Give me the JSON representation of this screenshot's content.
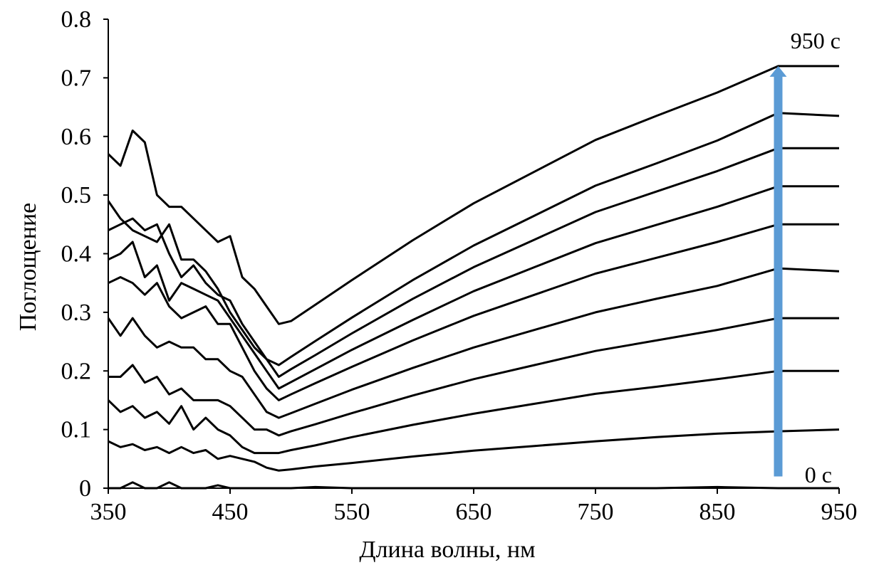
{
  "chart_data": {
    "type": "line",
    "title": "",
    "xlabel": "Длина волны, нм",
    "ylabel": "Поглощение",
    "xlim": [
      350,
      950
    ],
    "ylim": [
      0,
      0.8
    ],
    "xticks": [
      "350",
      "450",
      "550",
      "650",
      "750",
      "850",
      "950"
    ],
    "yticks": [
      "0",
      "0.1",
      "0.2",
      "0.3",
      "0.4",
      "0.5",
      "0.6",
      "0.7",
      "0.8"
    ],
    "grid": false,
    "x": [
      350,
      360,
      370,
      380,
      390,
      400,
      410,
      420,
      430,
      440,
      450,
      460,
      470,
      480,
      490,
      500,
      520,
      550,
      600,
      650,
      700,
      750,
      800,
      850,
      900,
      950
    ],
    "series": [
      {
        "name": "0 c",
        "values": [
          0,
          0,
          0.01,
          0,
          0,
          0.01,
          0,
          0,
          0,
          0.005,
          0,
          0,
          0,
          0,
          0,
          0,
          0.002,
          0,
          0,
          0,
          0,
          0,
          0,
          0.002,
          0,
          0
        ]
      },
      {
        "name": "",
        "values": [
          0.08,
          0.07,
          0.075,
          0.065,
          0.07,
          0.06,
          0.07,
          0.06,
          0.065,
          0.05,
          0.055,
          0.05,
          0.045,
          0.035,
          0.03,
          0.032,
          0.037,
          0.043,
          0.054,
          0.064,
          0.072,
          0.08,
          0.087,
          0.093,
          0.097,
          0.1
        ]
      },
      {
        "name": "",
        "values": [
          0.15,
          0.13,
          0.14,
          0.12,
          0.13,
          0.11,
          0.14,
          0.1,
          0.12,
          0.1,
          0.09,
          0.07,
          0.06,
          0.06,
          0.06,
          0.065,
          0.073,
          0.087,
          0.108,
          0.127,
          0.144,
          0.161,
          0.173,
          0.186,
          0.2,
          0.2
        ]
      },
      {
        "name": "",
        "values": [
          0.19,
          0.19,
          0.21,
          0.18,
          0.19,
          0.16,
          0.17,
          0.15,
          0.15,
          0.15,
          0.14,
          0.12,
          0.1,
          0.1,
          0.09,
          0.097,
          0.109,
          0.128,
          0.158,
          0.186,
          0.21,
          0.234,
          0.252,
          0.27,
          0.29,
          0.29
        ]
      },
      {
        "name": "",
        "values": [
          0.29,
          0.26,
          0.29,
          0.26,
          0.24,
          0.25,
          0.24,
          0.24,
          0.22,
          0.22,
          0.2,
          0.19,
          0.16,
          0.13,
          0.12,
          0.128,
          0.144,
          0.168,
          0.205,
          0.24,
          0.27,
          0.3,
          0.323,
          0.345,
          0.375,
          0.37
        ]
      },
      {
        "name": "",
        "values": [
          0.35,
          0.36,
          0.35,
          0.33,
          0.35,
          0.31,
          0.29,
          0.3,
          0.31,
          0.28,
          0.28,
          0.24,
          0.2,
          0.17,
          0.15,
          0.16,
          0.179,
          0.207,
          0.252,
          0.294,
          0.33,
          0.366,
          0.393,
          0.42,
          0.45,
          0.45
        ]
      },
      {
        "name": "",
        "values": [
          0.39,
          0.4,
          0.42,
          0.36,
          0.38,
          0.32,
          0.35,
          0.34,
          0.33,
          0.32,
          0.29,
          0.26,
          0.23,
          0.2,
          0.17,
          0.181,
          0.203,
          0.236,
          0.287,
          0.336,
          0.377,
          0.418,
          0.449,
          0.48,
          0.515,
          0.515
        ]
      },
      {
        "name": "",
        "values": [
          0.44,
          0.45,
          0.46,
          0.44,
          0.45,
          0.4,
          0.36,
          0.38,
          0.35,
          0.33,
          0.32,
          0.28,
          0.25,
          0.22,
          0.19,
          0.203,
          0.227,
          0.264,
          0.323,
          0.377,
          0.424,
          0.471,
          0.506,
          0.541,
          0.58,
          0.58
        ]
      },
      {
        "name": "",
        "values": [
          0.49,
          0.46,
          0.44,
          0.43,
          0.42,
          0.45,
          0.39,
          0.39,
          0.37,
          0.34,
          0.3,
          0.27,
          0.24,
          0.22,
          0.21,
          0.224,
          0.251,
          0.291,
          0.355,
          0.414,
          0.465,
          0.516,
          0.554,
          0.593,
          0.64,
          0.635
        ]
      },
      {
        "name": "950 c",
        "values": [
          0.57,
          0.55,
          0.61,
          0.59,
          0.5,
          0.48,
          0.48,
          0.46,
          0.44,
          0.42,
          0.43,
          0.36,
          0.34,
          0.31,
          0.28,
          0.285,
          0.313,
          0.355,
          0.423,
          0.486,
          0.54,
          0.594,
          0.635,
          0.675,
          0.72,
          0.72
        ]
      }
    ],
    "annotations": {
      "start_label": "0 c",
      "end_label": "950 c",
      "arrow": {
        "x": 900,
        "from": 0.02,
        "to": 0.72,
        "color": "#5b9bd5"
      }
    },
    "line_color": "#000000"
  }
}
